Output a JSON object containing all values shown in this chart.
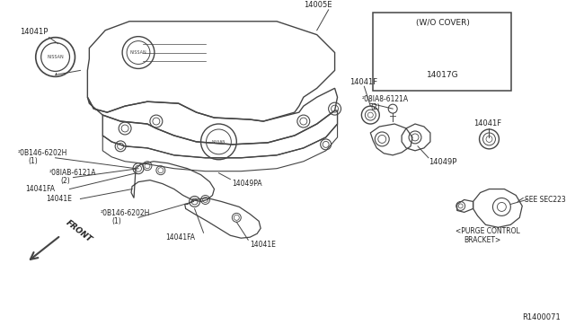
{
  "bg_color": "#ffffff",
  "line_color": "#444444",
  "text_color": "#222222",
  "diagram_number": "R1400071",
  "box_label": "(W/O COVER)",
  "box_part": "14017G",
  "figsize": [
    6.4,
    3.72
  ],
  "dpi": 100
}
